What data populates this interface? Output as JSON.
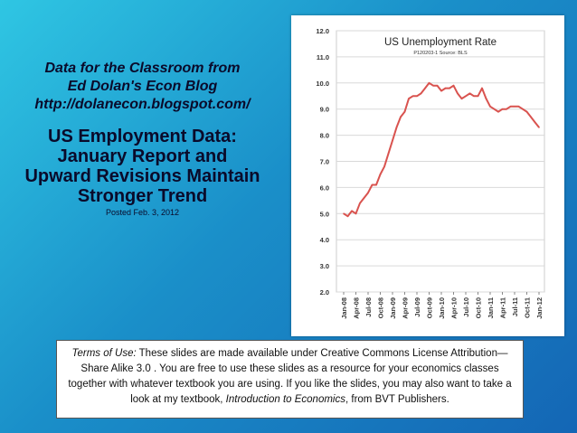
{
  "slide": {
    "byline1": "Data for the Classroom from",
    "byline2": "Ed Dolan's Econ Blog",
    "byline3": "http://dolanecon.blogspot.com/",
    "headline1": "US Employment Data:",
    "headline2": "January Report and",
    "headline3": "Upward Revisions Maintain",
    "headline4": "Stronger Trend",
    "posted": "Posted Feb. 3, 2012"
  },
  "terms": {
    "label": "Terms of Use:",
    "text1": " These slides are made available under Creative Commons License Attribution—Share Alike 3.0 . You are free to use these slides as a resource for your economics classes together with whatever textbook you are using. If you like the slides, you may also want to take a look at my textbook, ",
    "book": "Introduction to Economics",
    "text2": ", from BVT Publishers."
  },
  "chart_data": {
    "type": "line",
    "title": "US Unemployment Rate",
    "subtitle": "P120203-1 Source: BLS",
    "ylim": [
      2.0,
      12.0
    ],
    "yticks": [
      "2.0",
      "3.0",
      "4.0",
      "5.0",
      "6.0",
      "7.0",
      "8.0",
      "9.0",
      "10.0",
      "11.0",
      "12.0"
    ],
    "xticks": [
      "Jan-08",
      "Apr-08",
      "Jul-08",
      "Oct-08",
      "Jan-09",
      "Apr-09",
      "Jul-09",
      "Oct-09",
      "Jan-10",
      "Apr-10",
      "Jul-10",
      "Oct-10",
      "Jan-11",
      "Apr-11",
      "Jul-11",
      "Oct-11",
      "Jan-12"
    ],
    "grid": "horizontal",
    "color": "#d9534f",
    "series": [
      {
        "values": [
          5.0,
          4.9,
          5.1,
          5.0,
          5.4,
          5.6,
          5.8,
          6.1,
          6.1,
          6.5,
          6.8,
          7.3,
          7.8,
          8.3,
          8.7,
          8.9,
          9.4,
          9.5,
          9.5,
          9.6,
          9.8,
          10.0,
          9.9,
          9.9,
          9.7,
          9.8,
          9.8,
          9.9,
          9.6,
          9.4,
          9.5,
          9.6,
          9.5,
          9.5,
          9.8,
          9.4,
          9.1,
          9.0,
          8.9,
          9.0,
          9.0,
          9.1,
          9.1,
          9.1,
          9.0,
          8.9,
          8.7,
          8.5,
          8.3
        ]
      }
    ]
  }
}
